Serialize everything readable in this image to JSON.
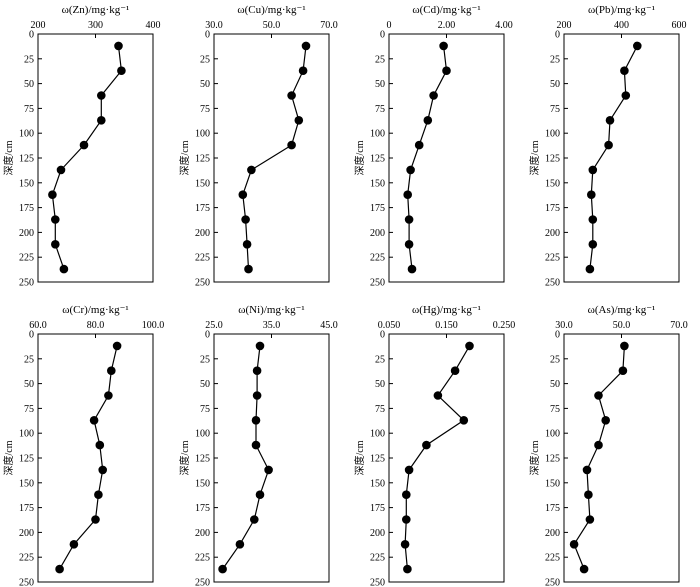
{
  "chart_data": [
    {
      "type": "line",
      "title": "ω(Zn)/mg·kg⁻¹",
      "ylabel": "深度/cm",
      "xlim": [
        200,
        400
      ],
      "xticks": [
        "200",
        "300",
        "400"
      ],
      "ylim": [
        0,
        250
      ],
      "yticks": [
        "0",
        "25",
        "50",
        "75",
        "100",
        "125",
        "150",
        "175",
        "200",
        "225",
        "250"
      ],
      "x": [
        340,
        345,
        310,
        310,
        280,
        240,
        225,
        230,
        230,
        245
      ],
      "y": [
        12,
        37,
        62,
        87,
        112,
        137,
        162,
        187,
        212,
        237
      ]
    },
    {
      "type": "line",
      "title": "ω(Cu)/mg·kg⁻¹",
      "ylabel": "深度/cm",
      "xlim": [
        30,
        70
      ],
      "xticks": [
        "30.0",
        "50.0",
        "70.0"
      ],
      "ylim": [
        0,
        250
      ],
      "yticks": [
        "0",
        "25",
        "50",
        "75",
        "100",
        "125",
        "150",
        "175",
        "200",
        "225",
        "250"
      ],
      "x": [
        62,
        61,
        57,
        59.5,
        57,
        43,
        40,
        41,
        41.5,
        42
      ],
      "y": [
        12,
        37,
        62,
        87,
        112,
        137,
        162,
        187,
        212,
        237
      ]
    },
    {
      "type": "line",
      "title": "ω(Cd)/mg·kg⁻¹",
      "ylabel": "深度/cm",
      "xlim": [
        0,
        4
      ],
      "xticks": [
        "0",
        "2.00",
        "4.00"
      ],
      "ylim": [
        0,
        250
      ],
      "yticks": [
        "0",
        "25",
        "50",
        "75",
        "100",
        "125",
        "150",
        "175",
        "200",
        "225",
        "250"
      ],
      "x": [
        1.9,
        2.0,
        1.55,
        1.35,
        1.05,
        0.75,
        0.65,
        0.7,
        0.7,
        0.8
      ],
      "y": [
        12,
        37,
        62,
        87,
        112,
        137,
        162,
        187,
        212,
        237
      ]
    },
    {
      "type": "line",
      "title": "ω(Pb)/mg·kg⁻¹",
      "ylabel": "深度/cm",
      "xlim": [
        200,
        600
      ],
      "xticks": [
        "200",
        "400",
        "600"
      ],
      "ylim": [
        0,
        250
      ],
      "yticks": [
        "0",
        "25",
        "50",
        "75",
        "100",
        "125",
        "150",
        "175",
        "200",
        "225",
        "250"
      ],
      "x": [
        455,
        410,
        415,
        360,
        355,
        300,
        295,
        300,
        300,
        290
      ],
      "y": [
        12,
        37,
        62,
        87,
        112,
        137,
        162,
        187,
        212,
        237
      ]
    },
    {
      "type": "line",
      "title": "ω(Cr)/mg·kg⁻¹",
      "ylabel": "深度/cm",
      "xlim": [
        60,
        100
      ],
      "xticks": [
        "60.0",
        "80.0",
        "100.0"
      ],
      "ylim": [
        0,
        250
      ],
      "yticks": [
        "0",
        "25",
        "50",
        "75",
        "100",
        "125",
        "150",
        "175",
        "200",
        "225",
        "250"
      ],
      "x": [
        87.5,
        85.5,
        84.5,
        79.5,
        81.5,
        82.5,
        81,
        80,
        72.5,
        67.5
      ],
      "y": [
        12,
        37,
        62,
        87,
        112,
        137,
        162,
        187,
        212,
        237
      ]
    },
    {
      "type": "line",
      "title": "ω(Ni)/mg·kg⁻¹",
      "ylabel": "深度/cm",
      "xlim": [
        25,
        45
      ],
      "xticks": [
        "25.0",
        "35.0",
        "45.0"
      ],
      "ylim": [
        0,
        250
      ],
      "yticks": [
        "0",
        "25",
        "50",
        "75",
        "100",
        "125",
        "150",
        "175",
        "200",
        "225",
        "250"
      ],
      "x": [
        33,
        32.5,
        32.5,
        32.3,
        32.3,
        34.5,
        33,
        32,
        29.5,
        26.5
      ],
      "y": [
        12,
        37,
        62,
        87,
        112,
        137,
        162,
        187,
        212,
        237
      ]
    },
    {
      "type": "line",
      "title": "ω(Hg)/mg·kg⁻¹",
      "ylabel": "深度/cm",
      "xlim": [
        0.05,
        0.25
      ],
      "xticks": [
        "0.050",
        "0.150",
        "0.250"
      ],
      "ylim": [
        0,
        250
      ],
      "yticks": [
        "0",
        "25",
        "50",
        "75",
        "100",
        "125",
        "150",
        "175",
        "200",
        "225",
        "250"
      ],
      "x": [
        0.19,
        0.165,
        0.135,
        0.18,
        0.115,
        0.085,
        0.08,
        0.08,
        0.078,
        0.082
      ],
      "y": [
        12,
        37,
        62,
        87,
        112,
        137,
        162,
        187,
        212,
        237
      ]
    },
    {
      "type": "line",
      "title": "ω(As)/mg·kg⁻¹",
      "ylabel": "深度/cm",
      "xlim": [
        30,
        70
      ],
      "xticks": [
        "30.0",
        "50.0",
        "70.0"
      ],
      "ylim": [
        0,
        250
      ],
      "yticks": [
        "0",
        "25",
        "50",
        "75",
        "100",
        "125",
        "150",
        "175",
        "200",
        "225",
        "250"
      ],
      "x": [
        51,
        50.5,
        42,
        44.5,
        42,
        38,
        38.5,
        39,
        33.5,
        37
      ],
      "y": [
        12,
        37,
        62,
        87,
        112,
        137,
        162,
        187,
        212,
        237
      ]
    }
  ]
}
